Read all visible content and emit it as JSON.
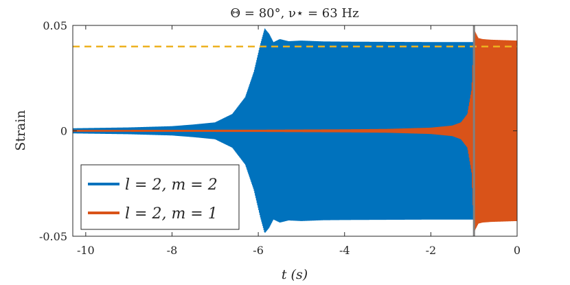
{
  "chart_data": {
    "type": "line",
    "title": "Θ = 80°,   ν⋆ = 63 Hz",
    "xlabel": "t (s)",
    "ylabel": "Strain",
    "xlim": [
      -10.3,
      0
    ],
    "ylim": [
      -0.05,
      0.05
    ],
    "x_ticks": [
      -10,
      -8,
      -6,
      -4,
      -2,
      0
    ],
    "x_tick_labels": [
      "-10",
      "-8",
      "-6",
      "-4",
      "-2",
      "0"
    ],
    "y_ticks": [
      -0.05,
      0,
      0.05
    ],
    "y_tick_labels": [
      "-0.05",
      "0",
      "0.05"
    ],
    "grid": false,
    "legend_placement": "bottom-left",
    "series": [
      {
        "name": "l = 2, m = 2",
        "color": "#0072BD",
        "style": "oscillation-envelope",
        "envelope": {
          "t": [
            -10.3,
            -9.0,
            -8.0,
            -7.5,
            -7.0,
            -6.6,
            -6.3,
            -6.1,
            -5.95,
            -5.85,
            -5.75,
            -5.65,
            -5.5,
            -5.3,
            -5.0,
            -4.5,
            -4.0,
            -3.0,
            -2.0,
            -1.1,
            -1.0
          ],
          "amp": [
            0.0012,
            0.0016,
            0.0022,
            0.003,
            0.004,
            0.008,
            0.016,
            0.028,
            0.041,
            0.0485,
            0.046,
            0.042,
            0.0435,
            0.0425,
            0.0428,
            0.0424,
            0.0423,
            0.0422,
            0.0421,
            0.0421,
            0.0421
          ]
        }
      },
      {
        "name": "l = 2, m = 1",
        "color": "#D95319",
        "style": "oscillation-envelope",
        "envelope": {
          "t": [
            -10.3,
            -6.0,
            -4.0,
            -3.0,
            -2.0,
            -1.5,
            -1.3,
            -1.15,
            -1.05,
            -1.0,
            -0.95,
            -0.9,
            -0.8,
            -0.6,
            -0.3,
            0.0
          ],
          "amp": [
            0.0004,
            0.0005,
            0.0007,
            0.0009,
            0.0015,
            0.0025,
            0.004,
            0.008,
            0.02,
            0.048,
            0.046,
            0.044,
            0.0435,
            0.0432,
            0.043,
            0.0428
          ]
        }
      }
    ],
    "annotations": [
      {
        "type": "hline",
        "y": 0.04,
        "color": "#EDB120",
        "style": "dashed"
      },
      {
        "type": "vline",
        "x": -1.0,
        "color": "#808080",
        "style": "solid"
      }
    ]
  }
}
